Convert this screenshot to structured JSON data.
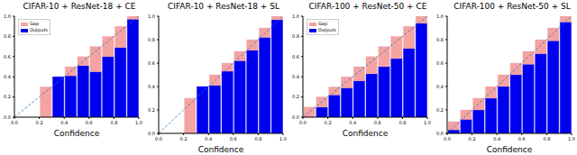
{
  "chart_data": [
    {
      "type": "bar",
      "title": "CIFAR-10 + ResNet-18 + CE",
      "x_label": "Confidence",
      "stacked": true,
      "grid": false,
      "legend": "upper left",
      "bins": [
        0,
        0.1,
        0.2,
        0.3,
        0.4,
        0.5,
        0.6,
        0.7,
        0.8,
        0.9,
        1
      ],
      "series": [
        {
          "name": "Gap",
          "color": "#f4a3a3",
          "values": [
            0,
            0,
            0.3,
            0,
            0.09,
            0.09,
            0.25,
            0.2,
            0.21,
            0.03
          ]
        },
        {
          "name": "Outputs",
          "color": "#0000f0",
          "values": [
            0,
            0,
            0,
            0.4,
            0.41,
            0.51,
            0.45,
            0.6,
            0.69,
            0.97
          ]
        }
      ],
      "xlim": [
        0,
        1
      ],
      "ylim": [
        0,
        1
      ],
      "xticks": [
        {
          "value": 0,
          "label": "0.0"
        },
        0.2,
        0.4,
        0.6,
        0.8,
        {
          "value": 1,
          "label": "1.0"
        }
      ],
      "yticks": [
        {
          "value": 0,
          "label": "0.0"
        },
        0.2,
        0.4,
        0.6,
        0.8,
        {
          "value": 1,
          "label": "1.0"
        }
      ]
    },
    {
      "type": "bar",
      "title": "CIFAR-10 + ResNet-18 + SL",
      "x_label": "Confidence",
      "stacked": true,
      "grid": false,
      "bins": [
        0,
        0.1,
        0.2,
        0.3,
        0.4,
        0.5,
        0.6,
        0.7,
        0.8,
        0.9,
        1
      ],
      "series": [
        {
          "name": "Gap",
          "color": "#f4a3a3",
          "values": [
            0,
            0,
            0.3,
            0,
            0.09,
            0.07,
            0.08,
            0.09,
            0.08,
            0.03
          ]
        },
        {
          "name": "Outputs",
          "color": "#0000f0",
          "values": [
            0,
            0,
            0,
            0.4,
            0.41,
            0.53,
            0.62,
            0.71,
            0.82,
            0.97
          ]
        }
      ],
      "xlim": [
        0,
        1
      ],
      "ylim": [
        0,
        1
      ],
      "xticks": [
        {
          "value": 0,
          "label": "0.0"
        },
        0.2,
        0.4,
        0.6,
        0.8,
        {
          "value": 1,
          "label": "1.0"
        }
      ],
      "yticks": [
        {
          "value": 0,
          "label": "0.0"
        },
        0.2,
        0.4,
        0.6,
        0.8,
        {
          "value": 1,
          "label": "1.0"
        }
      ]
    },
    {
      "type": "bar",
      "title": "CIFAR-100 + ResNet-50 + CE",
      "x_label": "Confidence",
      "stacked": true,
      "grid": false,
      "legend": "upper left",
      "bins": [
        0,
        0.1,
        0.2,
        0.3,
        0.4,
        0.5,
        0.6,
        0.7,
        0.8,
        0.9,
        1
      ],
      "series": [
        {
          "name": "Gap",
          "color": "#f4a3a3",
          "values": [
            0.1,
            0.1,
            0.08,
            0.11,
            0.14,
            0.17,
            0.2,
            0.22,
            0.22,
            0.07
          ]
        },
        {
          "name": "Outputs",
          "color": "#0000f0",
          "values": [
            0,
            0.1,
            0.22,
            0.29,
            0.36,
            0.43,
            0.5,
            0.58,
            0.68,
            0.93
          ]
        }
      ],
      "xlim": [
        0,
        1
      ],
      "ylim": [
        0,
        1
      ],
      "xticks": [
        {
          "value": 0,
          "label": "0.0"
        },
        0.2,
        0.4,
        0.6,
        0.8,
        {
          "value": 1,
          "label": "1.0"
        }
      ],
      "yticks": [
        {
          "value": 0,
          "label": "0.0"
        },
        0.2,
        0.4,
        0.6,
        0.8,
        {
          "value": 1,
          "label": "1.0"
        }
      ]
    },
    {
      "type": "bar",
      "title": "CIFAR-100 + ResNet-50 + SL",
      "x_label": "Confidence",
      "stacked": true,
      "grid": false,
      "bins": [
        0,
        0.1,
        0.2,
        0.3,
        0.4,
        0.5,
        0.6,
        0.7,
        0.8,
        0.9,
        1
      ],
      "series": [
        {
          "name": "Gap",
          "color": "#f4a3a3",
          "values": [
            0.07,
            0.08,
            0.1,
            0.1,
            0.1,
            0.1,
            0.11,
            0.12,
            0.11,
            0.05
          ]
        },
        {
          "name": "Outputs",
          "color": "#0000f0",
          "values": [
            0.03,
            0.12,
            0.2,
            0.3,
            0.4,
            0.5,
            0.59,
            0.68,
            0.79,
            0.95
          ]
        }
      ],
      "xlim": [
        0,
        1
      ],
      "ylim": [
        0,
        1
      ],
      "xticks": [
        {
          "value": 0,
          "label": "0.0"
        },
        0.2,
        0.4,
        0.6,
        0.8,
        {
          "value": 1,
          "label": "1.0"
        }
      ],
      "yticks": [
        {
          "value": 0,
          "label": "0.0"
        },
        0.2,
        0.4,
        0.6,
        0.8,
        {
          "value": 1,
          "label": "1.0"
        }
      ]
    }
  ]
}
